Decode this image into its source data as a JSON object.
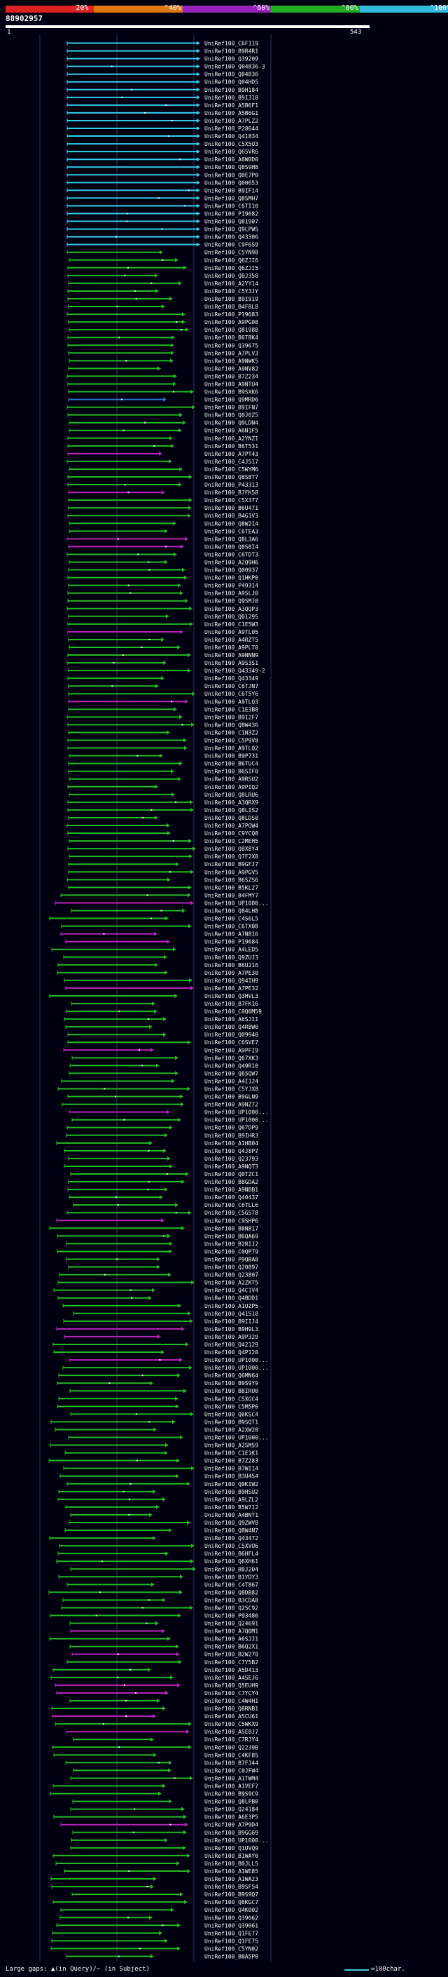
{
  "query_id": "88902957",
  "ruler": {
    "start": "1",
    "end": "543"
  },
  "legend": {
    "segments": [
      {
        "label": "20%",
        "color": "#dd2222"
      },
      {
        "label": "^40%",
        "color": "#dd7711"
      },
      {
        "label": "^60%",
        "color": "#9922bb"
      },
      {
        "label": "^80%",
        "color": "#22aa22"
      },
      {
        "label": "^100%",
        "color": "#33bbdd"
      }
    ]
  },
  "footer": {
    "text": "Large gaps: ▲(in Query)/~ (in Subject)",
    "scale_text": "=100char."
  },
  "colors": {
    "cyan": "#33ccee",
    "green": "#22bb22",
    "purple": "#bb22bb",
    "blue": "#2277cc"
  },
  "hits": [
    {
      "id": "UniRef100_C6F119",
      "color": "cyan"
    },
    {
      "id": "UniRef100_B9R4R1",
      "color": "cyan"
    },
    {
      "id": "UniRef100_Q39209",
      "color": "cyan"
    },
    {
      "id": "UniRef100_Q04836-3",
      "color": "cyan"
    },
    {
      "id": "UniRef100_Q04836",
      "color": "cyan"
    },
    {
      "id": "UniRef100_Q04HD5",
      "color": "cyan"
    },
    {
      "id": "UniRef100_B9H184",
      "color": "cyan"
    },
    {
      "id": "UniRef100_B9I318",
      "color": "cyan"
    },
    {
      "id": "UniRef100_A5B6F1",
      "color": "cyan"
    },
    {
      "id": "UniRef100_A5B6G1",
      "color": "cyan"
    },
    {
      "id": "UniRef100_A7PLZ2",
      "color": "cyan"
    },
    {
      "id": "UniRef100_P28644",
      "color": "cyan"
    },
    {
      "id": "UniRef100_Q41834",
      "color": "cyan"
    },
    {
      "id": "UniRef100_C5X5U3",
      "color": "cyan"
    },
    {
      "id": "UniRef100_Q65VR6",
      "color": "cyan"
    },
    {
      "id": "UniRef100_A6W0D0",
      "color": "cyan"
    },
    {
      "id": "UniRef100_Q8S9H8",
      "color": "cyan"
    },
    {
      "id": "UniRef100_Q0E7P0",
      "color": "cyan"
    },
    {
      "id": "UniRef100_Q00653",
      "color": "cyan"
    },
    {
      "id": "UniRef100_B9IF14",
      "color": "cyan"
    },
    {
      "id": "UniRef100_Q8SMH7",
      "color": "cyan"
    },
    {
      "id": "UniRef100_C6TI10",
      "color": "cyan"
    },
    {
      "id": "UniRef100_P19682",
      "color": "cyan"
    },
    {
      "id": "UniRef100_Q81907",
      "color": "cyan"
    },
    {
      "id": "UniRef100_Q9LPW5",
      "color": "cyan"
    },
    {
      "id": "UniRef100_Q43306",
      "color": "cyan"
    },
    {
      "id": "UniRef100_C9F6S9",
      "color": "cyan"
    },
    {
      "id": "UniRef100_C5YN98",
      "color": "green"
    },
    {
      "id": "UniRef100_Q6ZJI6",
      "color": "green"
    },
    {
      "id": "UniRef100_Q6ZJI5",
      "color": "green"
    },
    {
      "id": "UniRef100_Q0J350",
      "color": "green"
    },
    {
      "id": "UniRef100_A2YY14",
      "color": "green"
    },
    {
      "id": "UniRef100_C5Y3JY",
      "color": "green"
    },
    {
      "id": "UniRef100_B9I919",
      "color": "green"
    },
    {
      "id": "UniRef100_B4F8L8",
      "color": "green"
    },
    {
      "id": "UniRef100_P19683",
      "color": "green"
    },
    {
      "id": "UniRef100_A9PG08",
      "color": "green"
    },
    {
      "id": "UniRef100_Q81988",
      "color": "green"
    },
    {
      "id": "UniRef100_B6T8K4",
      "color": "green"
    },
    {
      "id": "UniRef100_Q39675",
      "color": "green"
    },
    {
      "id": "UniRef100_A7PLV3",
      "color": "green"
    },
    {
      "id": "UniRef100_A9NWK5",
      "color": "green"
    },
    {
      "id": "UniRef100_A9NV82",
      "color": "green"
    },
    {
      "id": "UniRef100_B7Z234",
      "color": "green"
    },
    {
      "id": "UniRef100_A9NTU4",
      "color": "green"
    },
    {
      "id": "UniRef100_B9SXK6",
      "color": "green"
    },
    {
      "id": "UniRef100_Q9MRD6",
      "color": "blue"
    },
    {
      "id": "UniRef100_B9IFN7",
      "color": "green"
    },
    {
      "id": "UniRef100_Q0J0Z5",
      "color": "green"
    },
    {
      "id": "UniRef100_Q9LDN4",
      "color": "green"
    },
    {
      "id": "UniRef100_A6N1F5",
      "color": "green"
    },
    {
      "id": "UniRef100_A2YNZ1",
      "color": "green"
    },
    {
      "id": "UniRef100_B6T531",
      "color": "green"
    },
    {
      "id": "UniRef100_A7PT43",
      "color": "purple"
    },
    {
      "id": "UniRef100_C4J517",
      "color": "green"
    },
    {
      "id": "UniRef100_C5WYM6",
      "color": "green"
    },
    {
      "id": "UniRef100_Q8S8T7",
      "color": "green"
    },
    {
      "id": "UniRef100_P43313",
      "color": "green"
    },
    {
      "id": "UniRef100_B7FK58",
      "color": "purple"
    },
    {
      "id": "UniRef100_C5X377",
      "color": "green"
    },
    {
      "id": "UniRef100_B6U471",
      "color": "green"
    },
    {
      "id": "UniRef100_B4G1V3",
      "color": "green"
    },
    {
      "id": "UniRef100_Q8W214",
      "color": "green"
    },
    {
      "id": "UniRef100_C6TEA3",
      "color": "green"
    },
    {
      "id": "UniRef100_Q8L3A6",
      "color": "purple"
    },
    {
      "id": "UniRef100_Q8S8I4",
      "color": "purple"
    },
    {
      "id": "UniRef100_C6TDT3",
      "color": "green"
    },
    {
      "id": "UniRef100_A2Q9H6",
      "color": "green"
    },
    {
      "id": "UniRef100_Q00937",
      "color": "green"
    },
    {
      "id": "UniRef100_Q1HKP0",
      "color": "green"
    },
    {
      "id": "UniRef100_P49314",
      "color": "green"
    },
    {
      "id": "UniRef100_A9SLJ0",
      "color": "green"
    },
    {
      "id": "UniRef100_Q9SMJ0",
      "color": "green"
    },
    {
      "id": "UniRef100_A3QQP3",
      "color": "green"
    },
    {
      "id": "UniRef100_Q01295",
      "color": "green"
    },
    {
      "id": "UniRef100_C1E5W3",
      "color": "green"
    },
    {
      "id": "UniRef100_A9TL05",
      "color": "purple"
    },
    {
      "id": "UniRef100_A4RZT5",
      "color": "green"
    },
    {
      "id": "UniRef100_A9PLT0",
      "color": "green"
    },
    {
      "id": "UniRef100_A9NNN9",
      "color": "green"
    },
    {
      "id": "UniRef100_A9S3S1",
      "color": "green"
    },
    {
      "id": "UniRef100_Q43349-2",
      "color": "green"
    },
    {
      "id": "UniRef100_Q43349",
      "color": "green"
    },
    {
      "id": "UniRef100_C6TJN7",
      "color": "green"
    },
    {
      "id": "UniRef100_C6T5Y6",
      "color": "green"
    },
    {
      "id": "UniRef100_A9TLQ3",
      "color": "purple"
    },
    {
      "id": "UniRef100_C1E3B8",
      "color": "green"
    },
    {
      "id": "UniRef100_B9I2F7",
      "color": "green"
    },
    {
      "id": "UniRef100_Q8W436",
      "color": "green"
    },
    {
      "id": "UniRef100_C1N3Z2",
      "color": "green"
    },
    {
      "id": "UniRef100_C5P9V8",
      "color": "green"
    },
    {
      "id": "UniRef100_A9TLQ2",
      "color": "green"
    },
    {
      "id": "UniRef100_B9P731",
      "color": "green"
    },
    {
      "id": "UniRef100_B6TUC4",
      "color": "green"
    },
    {
      "id": "UniRef100_B6SIF0",
      "color": "green"
    },
    {
      "id": "UniRef100_A9RSU2",
      "color": "green"
    },
    {
      "id": "UniRef100_A9PIQ2",
      "color": "green"
    },
    {
      "id": "UniRef100_Q8LRU6",
      "color": "green"
    },
    {
      "id": "UniRef100_A3QRX9",
      "color": "green"
    },
    {
      "id": "UniRef100_Q8LIS2",
      "color": "green"
    },
    {
      "id": "UniRef100_Q8LDS0",
      "color": "green"
    },
    {
      "id": "UniRef100_A7PQW4",
      "color": "green"
    },
    {
      "id": "UniRef100_C9YCQ8",
      "color": "green"
    },
    {
      "id": "UniRef100_C2MEH5",
      "color": "green"
    },
    {
      "id": "UniRef100_Q8X8Y4",
      "color": "green"
    },
    {
      "id": "UniRef100_Q7F2X8",
      "color": "green"
    },
    {
      "id": "UniRef100_B9GFJ7",
      "color": "green"
    },
    {
      "id": "UniRef100_A9PGV5",
      "color": "green"
    },
    {
      "id": "UniRef100_B6SZS6",
      "color": "green"
    },
    {
      "id": "UniRef100_B5KL27",
      "color": "green"
    },
    {
      "id": "UniRef100_B4FMY7",
      "color": "green"
    },
    {
      "id": "UniRef100_UP1000...",
      "color": "purple"
    },
    {
      "id": "UniRef100_Q84LH8",
      "color": "green"
    },
    {
      "id": "UniRef100_C4S6L5",
      "color": "green"
    },
    {
      "id": "UniRef100_C6TX08",
      "color": "green"
    },
    {
      "id": "UniRef100_A7N816",
      "color": "purple"
    },
    {
      "id": "UniRef100_P19684",
      "color": "purple"
    },
    {
      "id": "UniRef100_A4LED5",
      "color": "green"
    },
    {
      "id": "UniRef100_Q9ZUJ3",
      "color": "green"
    },
    {
      "id": "UniRef100_B6U216",
      "color": "green"
    },
    {
      "id": "UniRef100_A7PE30",
      "color": "green"
    },
    {
      "id": "UniRef100_Q94IH9",
      "color": "green"
    },
    {
      "id": "UniRef100_A7PE32",
      "color": "purple"
    },
    {
      "id": "UniRef100_Q3HVL3",
      "color": "green"
    },
    {
      "id": "UniRef100_B7FK16",
      "color": "green"
    },
    {
      "id": "UniRef100_C0Q0M59",
      "color": "green"
    },
    {
      "id": "UniRef100_A6SJI1",
      "color": "green"
    },
    {
      "id": "UniRef100_Q4R8W0",
      "color": "green"
    },
    {
      "id": "UniRef100_Q09940",
      "color": "green"
    },
    {
      "id": "UniRef100_C6SVE7",
      "color": "green"
    },
    {
      "id": "UniRef100_A9PFI9",
      "color": "purple"
    },
    {
      "id": "UniRef100_Q67XK3",
      "color": "green"
    },
    {
      "id": "UniRef100_Q49R10",
      "color": "green"
    },
    {
      "id": "UniRef100_Q65QW7",
      "color": "green"
    },
    {
      "id": "UniRef100_A4I124",
      "color": "green"
    },
    {
      "id": "UniRef100_C5YJX8",
      "color": "green"
    },
    {
      "id": "UniRef100_B9GLN9",
      "color": "green"
    },
    {
      "id": "UniRef100_A9NZ72",
      "color": "green"
    },
    {
      "id": "UniRef100_UP1000...",
      "color": "purple"
    },
    {
      "id": "UniRef100_UP1000...",
      "color": "green"
    },
    {
      "id": "UniRef100_Q67DP9",
      "color": "green"
    },
    {
      "id": "UniRef100_B9IHR3",
      "color": "green"
    },
    {
      "id": "UniRef100_A1HB04",
      "color": "green"
    },
    {
      "id": "UniRef100_Q4J8P7",
      "color": "green"
    },
    {
      "id": "UniRef100_Q23793",
      "color": "green"
    },
    {
      "id": "UniRef100_A9NQT3",
      "color": "green"
    },
    {
      "id": "UniRef100_Q0TZC1",
      "color": "green"
    },
    {
      "id": "UniRef100_B8GDA2",
      "color": "green"
    },
    {
      "id": "UniRef100_A9NBB1",
      "color": "green"
    },
    {
      "id": "UniRef100_Q40437",
      "color": "green"
    },
    {
      "id": "UniRef100_C6TLL6",
      "color": "green"
    },
    {
      "id": "UniRef100_C5G5T8",
      "color": "green"
    },
    {
      "id": "UniRef100_C9SHP6",
      "color": "purple"
    },
    {
      "id": "UniRef100_B8N817",
      "color": "green"
    },
    {
      "id": "UniRef100_B6QA69",
      "color": "green"
    },
    {
      "id": "UniRef100_B2RIJ2",
      "color": "green"
    },
    {
      "id": "UniRef100_C0QP79",
      "color": "green"
    },
    {
      "id": "UniRef100_P9QBA8",
      "color": "green"
    },
    {
      "id": "UniRef100_Q20897",
      "color": "green"
    },
    {
      "id": "UniRef100_Q23807",
      "color": "green"
    },
    {
      "id": "UniRef100_A2ZKT5",
      "color": "green"
    },
    {
      "id": "UniRef100_Q4C1V4",
      "color": "green"
    },
    {
      "id": "UniRef100_Q4BDD1",
      "color": "green"
    },
    {
      "id": "UniRef100_A1UZP5",
      "color": "green"
    },
    {
      "id": "UniRef100_Q41518",
      "color": "green"
    },
    {
      "id": "UniRef100_B9IIJ4",
      "color": "green"
    },
    {
      "id": "UniRef100_B9H9L3",
      "color": "purple"
    },
    {
      "id": "UniRef100_A9P329",
      "color": "purple"
    },
    {
      "id": "UniRef100_Q42129",
      "color": "green"
    },
    {
      "id": "UniRef100_Q4P120",
      "color": "green"
    },
    {
      "id": "UniRef100_UP1000...",
      "color": "purple"
    },
    {
      "id": "UniRef100_UP1000...",
      "color": "green"
    },
    {
      "id": "UniRef100_Q6MN64",
      "color": "green"
    },
    {
      "id": "UniRef100_B9S9Y9",
      "color": "green"
    },
    {
      "id": "UniRef100_B8IRU0",
      "color": "green"
    },
    {
      "id": "UniRef100_C5XGC4",
      "color": "green"
    },
    {
      "id": "UniRef100_C5M5P0",
      "color": "green"
    },
    {
      "id": "UniRef100_Q6KSC4",
      "color": "green"
    },
    {
      "id": "UniRef100_B9SQT1",
      "color": "green"
    },
    {
      "id": "UniRef100_A2XW20",
      "color": "green"
    },
    {
      "id": "UniRef100_UP1000...",
      "color": "green"
    },
    {
      "id": "UniRef100_A2SM59",
      "color": "green"
    },
    {
      "id": "UniRef100_C1E1K1",
      "color": "green"
    },
    {
      "id": "UniRef100_B7Z283",
      "color": "green"
    },
    {
      "id": "UniRef100_B7WI14",
      "color": "green"
    },
    {
      "id": "UniRef100_B3U454",
      "color": "green"
    },
    {
      "id": "UniRef100_Q0KIW2",
      "color": "green"
    },
    {
      "id": "UniRef100_B9HSU2",
      "color": "green"
    },
    {
      "id": "UniRef100_A9LZL2",
      "color": "green"
    },
    {
      "id": "UniRef100_B5W712",
      "color": "green"
    },
    {
      "id": "UniRef100_A4BNT1",
      "color": "green"
    },
    {
      "id": "UniRef100_Q9ZWV8",
      "color": "green"
    },
    {
      "id": "UniRef100_Q8W4N7",
      "color": "green"
    },
    {
      "id": "UniRef100_Q43472",
      "color": "green"
    },
    {
      "id": "UniRef100_C5XVU6",
      "color": "green"
    },
    {
      "id": "UniRef100_B6HFL4",
      "color": "green"
    },
    {
      "id": "UniRef100_Q6XH61",
      "color": "green"
    },
    {
      "id": "UniRef100_B8J204",
      "color": "green"
    },
    {
      "id": "UniRef100_B1YDY3",
      "color": "green"
    },
    {
      "id": "UniRef100_C4T867",
      "color": "green"
    },
    {
      "id": "UniRef100_Q8DB82",
      "color": "green"
    },
    {
      "id": "UniRef100_B3CDA8",
      "color": "green"
    },
    {
      "id": "UniRef100_Q2SC92",
      "color": "green"
    },
    {
      "id": "UniRef100_P93486",
      "color": "green"
    },
    {
      "id": "UniRef100_Q24691",
      "color": "green"
    },
    {
      "id": "UniRef100_A7Q0M1",
      "color": "purple"
    },
    {
      "id": "UniRef100_A6SJJ1",
      "color": "green"
    },
    {
      "id": "UniRef100_B6Q2X1",
      "color": "green"
    },
    {
      "id": "UniRef100_B2W270",
      "color": "purple"
    },
    {
      "id": "UniRef100_C7Y5B2",
      "color": "green"
    },
    {
      "id": "UniRef100_A5D413",
      "color": "green"
    },
    {
      "id": "UniRef100_A4SEJ6",
      "color": "green"
    },
    {
      "id": "UniRef100_Q5EUH9",
      "color": "purple"
    },
    {
      "id": "UniRef100_C7YCY4",
      "color": "purple"
    },
    {
      "id": "UniRef100_C4W4H1",
      "color": "green"
    },
    {
      "id": "UniRef100_Q8RNB1",
      "color": "green"
    },
    {
      "id": "UniRef100_A5CU61",
      "color": "purple"
    },
    {
      "id": "UniRef100_C5WKX9",
      "color": "green"
    },
    {
      "id": "UniRef100_A5E8J7",
      "color": "purple"
    },
    {
      "id": "UniRef100_C7RJY4",
      "color": "green"
    },
    {
      "id": "UniRef100_Q2239B",
      "color": "green"
    },
    {
      "id": "UniRef100_C4KF85",
      "color": "green"
    },
    {
      "id": "UniRef100_B7FJ44",
      "color": "green"
    },
    {
      "id": "UniRef100_C0JFW4",
      "color": "green"
    },
    {
      "id": "UniRef100_A1TWM4",
      "color": "green"
    },
    {
      "id": "UniRef100_A1VEF7",
      "color": "green"
    },
    {
      "id": "UniRef100_B9S9C9",
      "color": "green"
    },
    {
      "id": "UniRef100_Q8LPB0",
      "color": "green"
    },
    {
      "id": "UniRef100_Q24184",
      "color": "green"
    },
    {
      "id": "UniRef100_A6E3P5",
      "color": "green"
    },
    {
      "id": "UniRef100_A7P9D4",
      "color": "purple"
    },
    {
      "id": "UniRef100_B9GG69",
      "color": "green"
    },
    {
      "id": "UniRef100_UP1000...",
      "color": "green"
    },
    {
      "id": "UniRef100_Q1UVQ9",
      "color": "green"
    },
    {
      "id": "UniRef100_B1WAY0",
      "color": "green"
    },
    {
      "id": "UniRef100_B0JLL5",
      "color": "green"
    },
    {
      "id": "UniRef100_A1WE85",
      "color": "green"
    },
    {
      "id": "UniRef100_A1WA23",
      "color": "green"
    },
    {
      "id": "UniRef100_B9SF54",
      "color": "green"
    },
    {
      "id": "UniRef100_B9S9Q7",
      "color": "green"
    },
    {
      "id": "UniRef100_Q6KGC7",
      "color": "green"
    },
    {
      "id": "UniRef100_Q4K002",
      "color": "green"
    },
    {
      "id": "UniRef100_Q39062",
      "color": "green"
    },
    {
      "id": "UniRef100_Q39061",
      "color": "green"
    },
    {
      "id": "UniRef100_Q1FE77",
      "color": "green"
    },
    {
      "id": "UniRef100_Q1FE75",
      "color": "green"
    },
    {
      "id": "UniRef100_C5YN02",
      "color": "green"
    },
    {
      "id": "UniRef100_B8A5P0",
      "color": "green"
    }
  ]
}
